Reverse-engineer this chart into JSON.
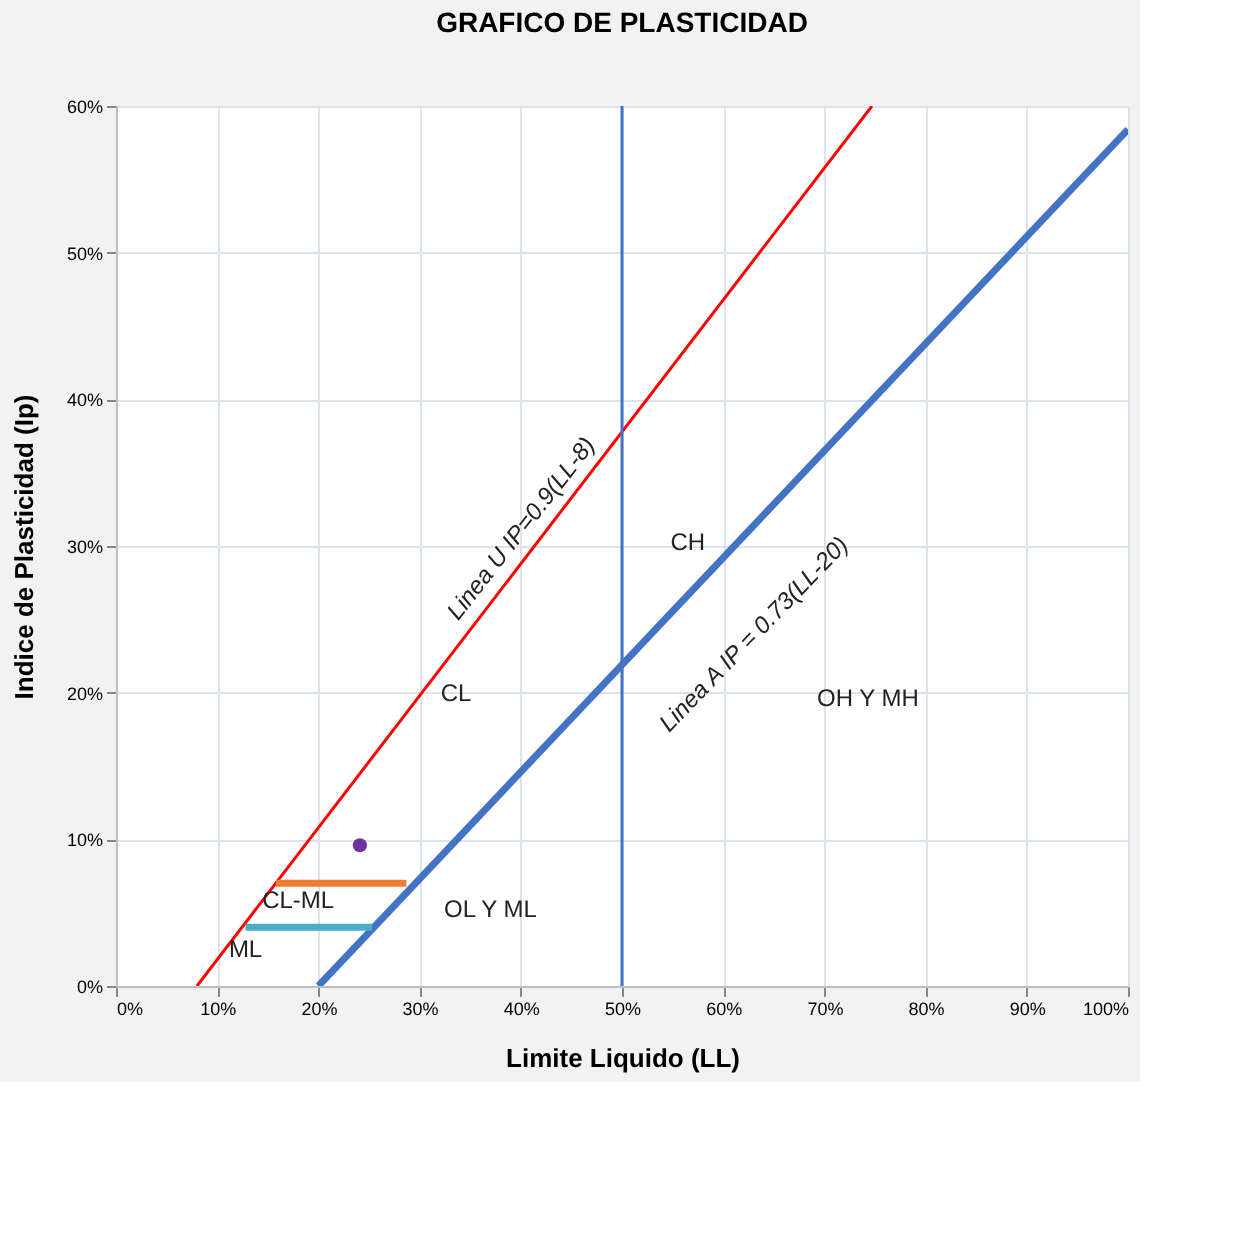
{
  "chart_data": {
    "type": "line",
    "title": "GRAFICO DE PLASTICIDAD",
    "xlabel": "Limite Liquido (LL)",
    "ylabel": "Indice de Plasticidad (Ip)",
    "xlim": [
      0,
      100
    ],
    "ylim": [
      0,
      60
    ],
    "xticks": [
      {
        "value": 0,
        "label": "0%"
      },
      {
        "value": 10,
        "label": "10%"
      },
      {
        "value": 20,
        "label": "20%"
      },
      {
        "value": 30,
        "label": "30%"
      },
      {
        "value": 40,
        "label": "40%"
      },
      {
        "value": 50,
        "label": "50%"
      },
      {
        "value": 60,
        "label": "60%"
      },
      {
        "value": 70,
        "label": "70%"
      },
      {
        "value": 80,
        "label": "80%"
      },
      {
        "value": 90,
        "label": "90%"
      },
      {
        "value": 100,
        "label": "100%"
      }
    ],
    "yticks": [
      {
        "value": 0,
        "label": "0%"
      },
      {
        "value": 10,
        "label": "10%"
      },
      {
        "value": 20,
        "label": "20%"
      },
      {
        "value": 30,
        "label": "30%"
      },
      {
        "value": 40,
        "label": "40%"
      },
      {
        "value": 50,
        "label": "50%"
      },
      {
        "value": 60,
        "label": "60%"
      }
    ],
    "grid": true,
    "series": [
      {
        "type": "line",
        "color": "#ff0000",
        "x": [
          8,
          74.7
        ],
        "values": [
          0,
          60
        ]
      },
      {
        "type": "line",
        "color": "#4472c4",
        "x": [
          20,
          100
        ],
        "values": [
          0,
          58.4
        ]
      },
      {
        "type": "line",
        "color": "#ed7d31",
        "x": [
          15.8,
          28.7
        ],
        "values": [
          7,
          7
        ]
      },
      {
        "type": "line",
        "color": "#4bacc6",
        "x": [
          12.8,
          25.3
        ],
        "values": [
          4,
          4
        ]
      },
      {
        "type": "scatter",
        "color": "#7030a0",
        "x": [
          24.1
        ],
        "values": [
          9.6
        ],
        "marker": "circle"
      }
    ],
    "ref_lines": [
      {
        "axis": "x",
        "value": 50,
        "color": "#4472c4"
      }
    ],
    "annotations": [
      "Linea U   IP=0.9(LL-8)",
      "CH",
      "CL",
      "Linea A   IP = 0.73(LL-20)",
      "OH Y MH",
      "CL-ML",
      "ML",
      "OL Y ML"
    ]
  }
}
